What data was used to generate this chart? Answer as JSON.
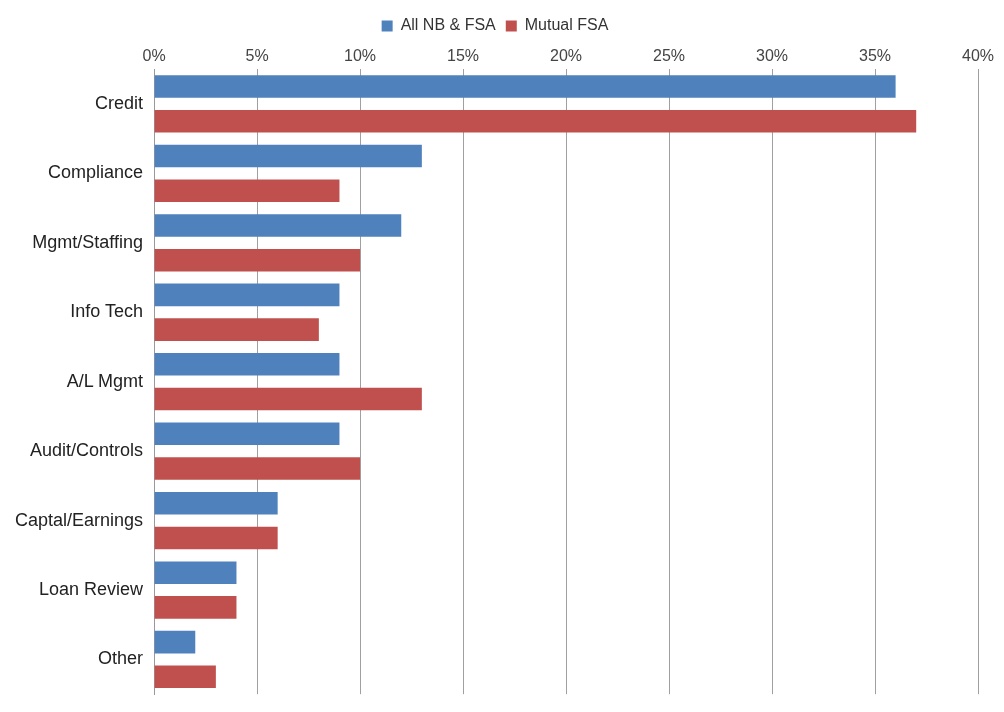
{
  "chart_data": {
    "type": "bar",
    "orientation": "horizontal",
    "categories": [
      "Credit",
      "Compliance",
      "Mgmt/Staffing",
      "Info Tech",
      "A/L Mgmt",
      "Audit/Controls",
      "Captal/Earnings",
      "Loan Review",
      "Other"
    ],
    "series": [
      {
        "name": "All NB & FSA",
        "color": "#4f81bd",
        "values": [
          36,
          13,
          12,
          9,
          9,
          9,
          6,
          4,
          2
        ]
      },
      {
        "name": "Mutual FSA",
        "color": "#c0504d",
        "values": [
          37,
          9,
          10,
          8,
          13,
          10,
          6,
          4,
          3
        ]
      }
    ],
    "xlim": [
      0,
      40
    ],
    "xticks": [
      {
        "value": 0,
        "label": "0%"
      },
      {
        "value": 5,
        "label": "5%"
      },
      {
        "value": 10,
        "label": "10%"
      },
      {
        "value": 15,
        "label": "15%"
      },
      {
        "value": 20,
        "label": "20%"
      },
      {
        "value": 25,
        "label": "25%"
      },
      {
        "value": 30,
        "label": "30%"
      },
      {
        "value": 35,
        "label": "35%"
      },
      {
        "value": 40,
        "label": "40%"
      }
    ],
    "grid": "x",
    "legend": "top"
  }
}
